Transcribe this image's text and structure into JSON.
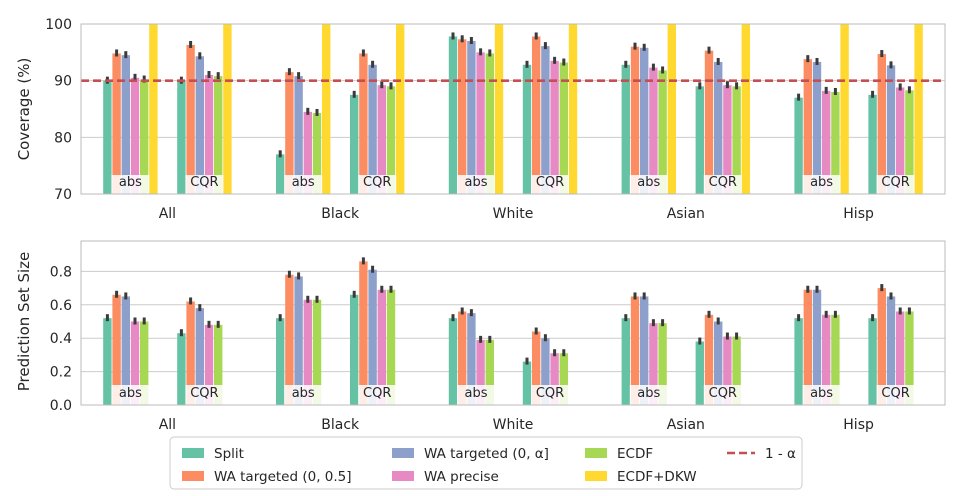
{
  "colors": {
    "Split": "#66c2a5",
    "WA targeted (0, 0.5]": "#fc8d62",
    "WA targeted (0, α]": "#8da0cb",
    "WA precise": "#e78ac3",
    "ECDF": "#a6d854",
    "ECDF+DKW": "#ffd92f",
    "threshold": "#c44e52",
    "grid": "#cccccc",
    "frame": "#bbbbbb"
  },
  "legend": {
    "entries": [
      {
        "key": "Split",
        "label": "Split"
      },
      {
        "key": "WA targeted (0, 0.5]",
        "label": "WA targeted (0, 0.5]"
      },
      {
        "key": "WA targeted (0, α]",
        "label": "WA targeted (0, α]"
      },
      {
        "key": "WA precise",
        "label": "WA precise"
      },
      {
        "key": "ECDF",
        "label": "ECDF"
      },
      {
        "key": "ECDF+DKW",
        "label": "ECDF+DKW"
      },
      {
        "key": "threshold",
        "label": "1 - α",
        "style": "dashed-line"
      }
    ],
    "placement": "bottom-center"
  },
  "chart_data": [
    {
      "type": "bar",
      "ylabel": "Coverage (%)",
      "ylim": [
        70,
        100
      ],
      "yticks": [
        70,
        80,
        90,
        100
      ],
      "grid": true,
      "reference_line": {
        "y": 90,
        "label": "1 - α"
      },
      "categories": [
        "All",
        "Black",
        "White",
        "Asian",
        "Hisp"
      ],
      "subgroups": [
        "abs",
        "CQR"
      ],
      "series": [
        {
          "name": "Split",
          "values": [
            [
              90,
              90
            ],
            [
              77,
              87.5
            ],
            [
              97.8,
              92.8
            ],
            [
              92.8,
              89
            ],
            [
              87,
              87.5
            ]
          ]
        },
        {
          "name": "WA targeted (0, 0.5]",
          "values": [
            [
              94.8,
              96.3
            ],
            [
              91.5,
              94.8
            ],
            [
              97.3,
              97.8
            ],
            [
              96,
              95.3
            ],
            [
              93.8,
              94.7
            ]
          ]
        },
        {
          "name": "WA targeted (0, α]",
          "values": [
            [
              94.5,
              94.3
            ],
            [
              90.8,
              92.8
            ],
            [
              97,
              96.1
            ],
            [
              95.8,
              93.3
            ],
            [
              93.3,
              92.7
            ]
          ]
        },
        {
          "name": "WA precise",
          "values": [
            [
              90.5,
              91
            ],
            [
              84.5,
              89.2
            ],
            [
              95,
              93.5
            ],
            [
              92.3,
              89.2
            ],
            [
              88.2,
              88.8
            ]
          ]
        },
        {
          "name": "ECDF",
          "values": [
            [
              90.2,
              90.8
            ],
            [
              84.3,
              89
            ],
            [
              94.8,
              93.2
            ],
            [
              91.8,
              89
            ],
            [
              88,
              88.3
            ]
          ]
        },
        {
          "name": "ECDF+DKW",
          "values": [
            [
              100,
              100
            ],
            [
              100,
              100
            ],
            [
              100,
              100
            ],
            [
              100,
              100
            ],
            [
              100,
              100
            ]
          ]
        }
      ]
    },
    {
      "type": "bar",
      "ylabel": "Prediction Set Size",
      "ylim": [
        0,
        1.0
      ],
      "yticks": [
        0.0,
        0.2,
        0.4,
        0.6,
        0.8
      ],
      "ytick_labels": [
        "0.0",
        "0.2",
        "0.4",
        "0.6",
        "0.8"
      ],
      "grid": true,
      "categories": [
        "All",
        "Black",
        "White",
        "Asian",
        "Hisp"
      ],
      "subgroups": [
        "abs",
        "CQR"
      ],
      "series": [
        {
          "name": "Split",
          "values": [
            [
              0.52,
              0.43
            ],
            [
              0.52,
              0.66
            ],
            [
              0.52,
              0.26
            ],
            [
              0.52,
              0.38
            ],
            [
              0.52,
              0.52
            ]
          ]
        },
        {
          "name": "WA targeted (0, 0.5]",
          "values": [
            [
              0.66,
              0.62
            ],
            [
              0.78,
              0.86
            ],
            [
              0.56,
              0.44
            ],
            [
              0.65,
              0.54
            ],
            [
              0.69,
              0.7
            ]
          ]
        },
        {
          "name": "WA targeted (0, α]",
          "values": [
            [
              0.65,
              0.58
            ],
            [
              0.77,
              0.81
            ],
            [
              0.55,
              0.4
            ],
            [
              0.65,
              0.5
            ],
            [
              0.69,
              0.65
            ]
          ]
        },
        {
          "name": "WA precise",
          "values": [
            [
              0.5,
              0.48
            ],
            [
              0.63,
              0.69
            ],
            [
              0.39,
              0.31
            ],
            [
              0.49,
              0.41
            ],
            [
              0.54,
              0.56
            ]
          ]
        },
        {
          "name": "ECDF",
          "values": [
            [
              0.5,
              0.48
            ],
            [
              0.63,
              0.69
            ],
            [
              0.39,
              0.31
            ],
            [
              0.49,
              0.41
            ],
            [
              0.54,
              0.56
            ]
          ]
        }
      ]
    }
  ]
}
